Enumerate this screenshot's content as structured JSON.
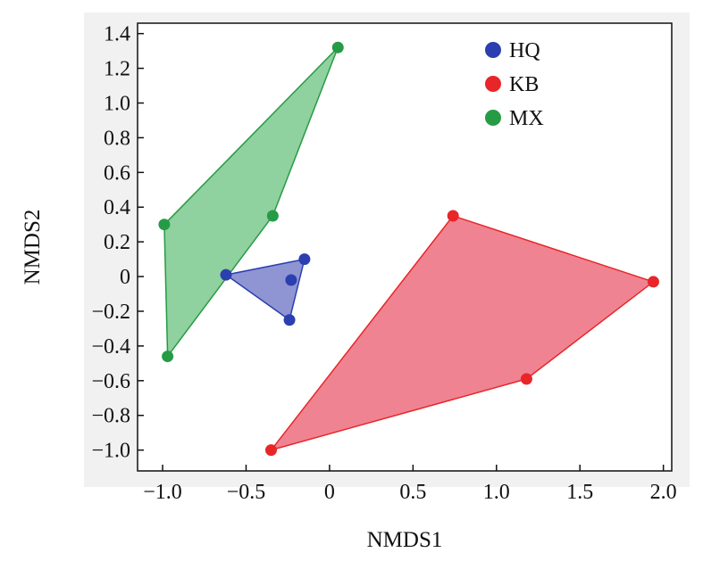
{
  "chart_data": {
    "type": "scatter",
    "title": "",
    "xlabel": "NMDS1",
    "ylabel": "NMDS2",
    "xlim": [
      -1.15,
      2.05
    ],
    "ylim": [
      -1.12,
      1.46
    ],
    "x_ticks": [
      -1.0,
      -0.5,
      0,
      0.5,
      1.0,
      1.5,
      2.0
    ],
    "x_tick_labels": [
      "−1.0",
      "−0.5",
      "0",
      "0.5",
      "1.0",
      "1.5",
      "2.0"
    ],
    "y_ticks": [
      1.4,
      1.2,
      1.0,
      0.8,
      0.6,
      0.4,
      0.2,
      0,
      -0.2,
      -0.4,
      -0.6,
      -0.8,
      -1.0
    ],
    "y_tick_labels": [
      "1.4",
      "1.2",
      "1.0",
      "0.8",
      "0.6",
      "0.4",
      "0.2",
      "0",
      "−0.2",
      "−0.4",
      "−0.6",
      "−0.8",
      "−1.0"
    ],
    "grid": false,
    "legend_position": "top-right",
    "series": [
      {
        "name": "HQ",
        "color": "#2b3fb0",
        "fill": "#8f95d3",
        "points": [
          [
            -0.62,
            0.01
          ],
          [
            -0.15,
            0.1
          ],
          [
            -0.23,
            -0.02
          ],
          [
            -0.24,
            -0.25
          ]
        ],
        "hull": [
          0,
          1,
          3
        ]
      },
      {
        "name": "KB",
        "color": "#e8262a",
        "fill": "#ef8391",
        "points": [
          [
            0.74,
            0.35
          ],
          [
            1.94,
            -0.03
          ],
          [
            1.18,
            -0.59
          ],
          [
            -0.35,
            -1.0
          ]
        ],
        "hull": [
          0,
          1,
          2,
          3
        ]
      },
      {
        "name": "MX",
        "color": "#269b45",
        "fill": "#8fd19f",
        "points": [
          [
            0.05,
            1.32
          ],
          [
            -0.34,
            0.35
          ],
          [
            -0.99,
            0.3
          ],
          [
            -0.97,
            -0.46
          ]
        ],
        "hull": [
          0,
          1,
          3,
          2
        ]
      }
    ]
  }
}
